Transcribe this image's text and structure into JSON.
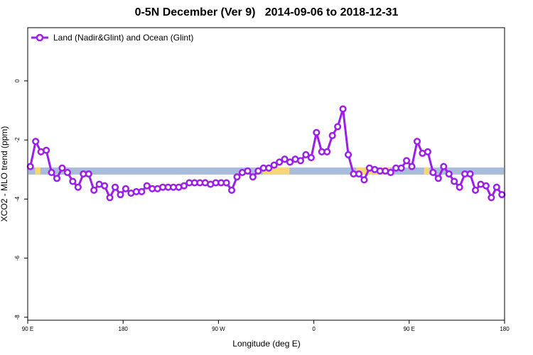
{
  "chart_data": {
    "type": "line",
    "title": "0-5N December (Ver 9)   2014-09-06 to 2018-12-31",
    "xlabel": "Longitude (deg E)",
    "ylabel": "XCO2 - MLO trend (ppm)",
    "xlim": [
      90,
      540
    ],
    "ylim": [
      -8.1,
      1.8
    ],
    "x_ticks": [
      {
        "value": 90,
        "label": "90 E"
      },
      {
        "value": 180,
        "label": "180"
      },
      {
        "value": 270,
        "label": "90 W"
      },
      {
        "value": 360,
        "label": "0"
      },
      {
        "value": 450,
        "label": "90 E"
      },
      {
        "value": 540,
        "label": "180"
      }
    ],
    "y_ticks": [
      {
        "value": 0,
        "label": "0"
      },
      {
        "value": -2,
        "label": "-2"
      },
      {
        "value": -4,
        "label": "-4"
      },
      {
        "value": -6,
        "label": "-6"
      },
      {
        "value": -8,
        "label": "-8"
      }
    ],
    "grid": false,
    "legend_position": "top-left",
    "series": [
      {
        "name": "Land (Nadir&Glint) and Ocean (Glint)",
        "color": "#9b1fe8",
        "marker": "open-circle",
        "x": [
          92.5,
          97.5,
          102.5,
          107.5,
          112.5,
          117.5,
          122.5,
          127.5,
          132.5,
          137.5,
          142.5,
          147.5,
          152.5,
          157.5,
          162.5,
          167.5,
          172.5,
          177.5,
          182.5,
          187.5,
          192.5,
          197.5,
          202.5,
          207.5,
          212.5,
          217.5,
          222.5,
          227.5,
          232.5,
          237.5,
          242.5,
          247.5,
          252.5,
          257.5,
          262.5,
          267.5,
          272.5,
          277.5,
          282.5,
          287.5,
          292.5,
          297.5,
          302.5,
          307.5,
          312.5,
          317.5,
          322.5,
          327.5,
          332.5,
          337.5,
          342.5,
          347.5,
          352.5,
          357.5,
          362.5,
          367.5,
          372.5,
          377.5,
          382.5,
          387.5,
          392.5,
          397.5,
          402.5,
          407.5,
          412.5,
          417.5,
          422.5,
          427.5,
          432.5,
          437.5,
          442.5,
          447.5,
          452.5,
          457.5,
          462.5,
          467.5,
          472.5,
          477.5,
          482.5,
          487.5,
          492.5,
          497.5,
          502.5,
          507.5,
          512.5,
          517.5,
          522.5,
          527.5,
          532.5,
          537.5
        ],
        "y": [
          -2.9,
          -2.05,
          -2.4,
          -2.35,
          -3.1,
          -3.3,
          -2.95,
          -3.1,
          -3.4,
          -3.6,
          -3.15,
          -3.15,
          -3.7,
          -3.5,
          -3.55,
          -3.95,
          -3.6,
          -3.85,
          -3.65,
          -3.8,
          -3.75,
          -3.75,
          -3.55,
          -3.65,
          -3.65,
          -3.6,
          -3.6,
          -3.6,
          -3.6,
          -3.55,
          -3.45,
          -3.45,
          -3.45,
          -3.45,
          -3.5,
          -3.45,
          -3.45,
          -3.45,
          -3.7,
          -3.25,
          -3.1,
          -3.05,
          -3.25,
          -3.05,
          -2.95,
          -2.95,
          -2.85,
          -2.75,
          -2.65,
          -2.75,
          -2.65,
          -2.7,
          -2.5,
          -2.6,
          -1.75,
          -2.4,
          -2.4,
          -1.85,
          -1.55,
          -0.95,
          -2.5,
          -3.15,
          -3.15,
          -3.35,
          -2.95,
          -3.0,
          -3.05,
          -3.05,
          -3.1,
          -2.95,
          -2.95,
          -2.7,
          -2.9,
          -2.05,
          -2.45,
          -2.4,
          -3.1,
          -3.3,
          -2.9,
          -3.15,
          -3.4,
          -3.6,
          -3.15,
          -3.15,
          -3.7,
          -3.5,
          -3.55,
          -3.95,
          -3.6,
          -3.85
        ]
      }
    ],
    "surface_band": {
      "y": -3.05,
      "land_color": "#f6d676",
      "ocean_color": "#a9bcd9",
      "land_segments": [
        [
          97,
          102
        ],
        [
          312,
          337
        ],
        [
          400,
          432
        ],
        [
          464,
          469
        ]
      ]
    }
  }
}
